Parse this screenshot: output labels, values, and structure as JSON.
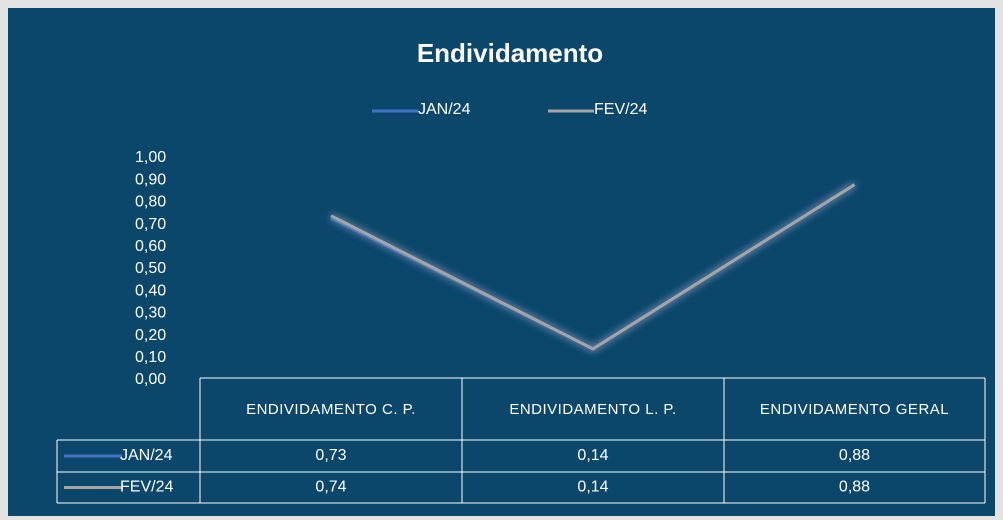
{
  "chart_data": {
    "type": "line",
    "title": "Endividamento",
    "categories": [
      "ENDIVIDAMENTO C. P.",
      "ENDIVIDAMENTO L. P.",
      "ENDIVIDAMENTO GERAL"
    ],
    "series": [
      {
        "name": "JAN/24",
        "color": "#4472c4",
        "values": [
          0.73,
          0.14,
          0.88
        ],
        "value_labels": [
          "0,73",
          "0,14",
          "0,88"
        ]
      },
      {
        "name": "FEV/24",
        "color": "#a5a5a5",
        "values": [
          0.74,
          0.14,
          0.88
        ],
        "value_labels": [
          "0,74",
          "0,14",
          "0,88"
        ]
      }
    ],
    "ylim": [
      0,
      1
    ],
    "yticks": [
      {
        "value": 0,
        "label": "0,00"
      },
      {
        "value": 0.1,
        "label": "0,10"
      },
      {
        "value": 0.2,
        "label": "0,20"
      },
      {
        "value": 0.3,
        "label": "0,30"
      },
      {
        "value": 0.4,
        "label": "0,40"
      },
      {
        "value": 0.5,
        "label": "0,50"
      },
      {
        "value": 0.6,
        "label": "0,60"
      },
      {
        "value": 0.7,
        "label": "0,70"
      },
      {
        "value": 0.8,
        "label": "0,80"
      },
      {
        "value": 0.9,
        "label": "0,90"
      },
      {
        "value": 1,
        "label": "1,00"
      }
    ],
    "legend": "top"
  }
}
